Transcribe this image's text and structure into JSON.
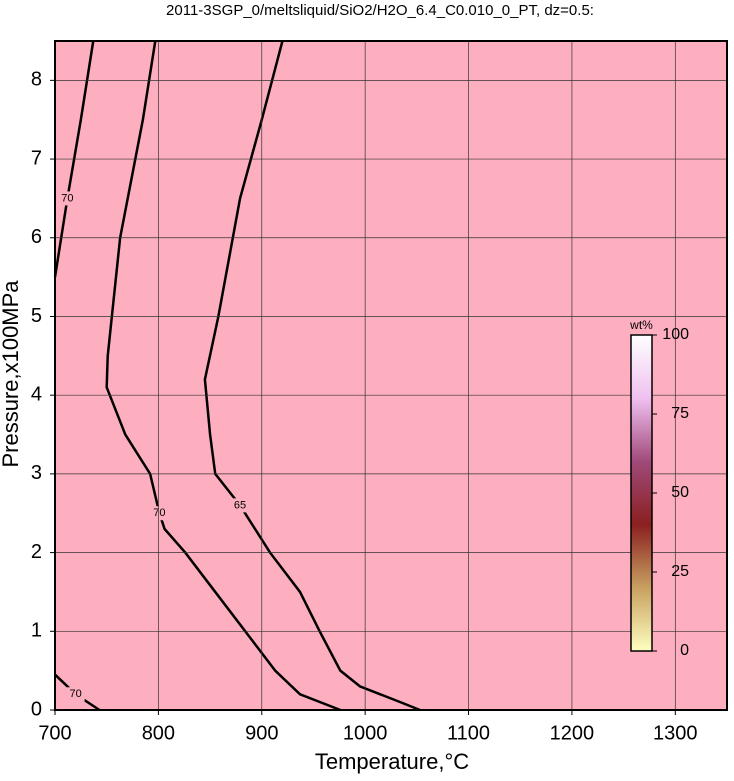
{
  "chart_data": {
    "type": "contour",
    "title": "2011-3SGP_0/meltsliquid/SiO2/H2O_6.4_C0.010_0_PT, dz=0.5:",
    "xlabel": "Temperature,°C",
    "ylabel": "Pressure,x100MPa",
    "xlim": [
      700,
      1350
    ],
    "ylim": [
      0,
      8.5
    ],
    "xticks": [
      700,
      800,
      900,
      1000,
      1100,
      1200,
      1300
    ],
    "yticks": [
      0,
      1,
      2,
      3,
      4,
      5,
      6,
      7,
      8
    ],
    "grid": true,
    "background": "#fdafbf",
    "line_color": "#000000",
    "contours": [
      {
        "level": 70,
        "x": [
          737,
          725,
          712,
          700
        ],
        "y": [
          8.5,
          7.5,
          6.5,
          5.5
        ]
      },
      {
        "level": 70,
        "x": [
          797,
          785,
          763,
          751,
          750,
          768,
          792,
          801,
          806,
          826,
          855,
          884,
          913,
          937,
          976
        ],
        "y": [
          8.5,
          7.5,
          6,
          4.5,
          4.1,
          3.5,
          3,
          2.5,
          2.3,
          2,
          1.5,
          1,
          0.5,
          0.2,
          0
        ]
      },
      {
        "level": 65,
        "x": [
          920,
          900,
          879,
          858,
          845,
          850,
          855,
          879,
          908,
          937,
          956,
          976,
          995,
          1034,
          1053
        ],
        "y": [
          8.5,
          7.5,
          6.5,
          5,
          4.2,
          3.5,
          3,
          2.6,
          2,
          1.5,
          1,
          0.5,
          0.3,
          0.1,
          0
        ]
      },
      {
        "level": 70,
        "x": [
          700,
          720,
          743
        ],
        "y": [
          0.45,
          0.2,
          0
        ]
      }
    ],
    "colorbar": {
      "label": "wt%",
      "lim": [
        0,
        100
      ],
      "ticks": [
        0,
        25,
        50,
        75,
        100
      ],
      "colors": [
        "#ffffc0",
        "#c8a060",
        "#8a2020",
        "#a04a7a",
        "#f0c0f0",
        "#ffffff"
      ]
    }
  }
}
